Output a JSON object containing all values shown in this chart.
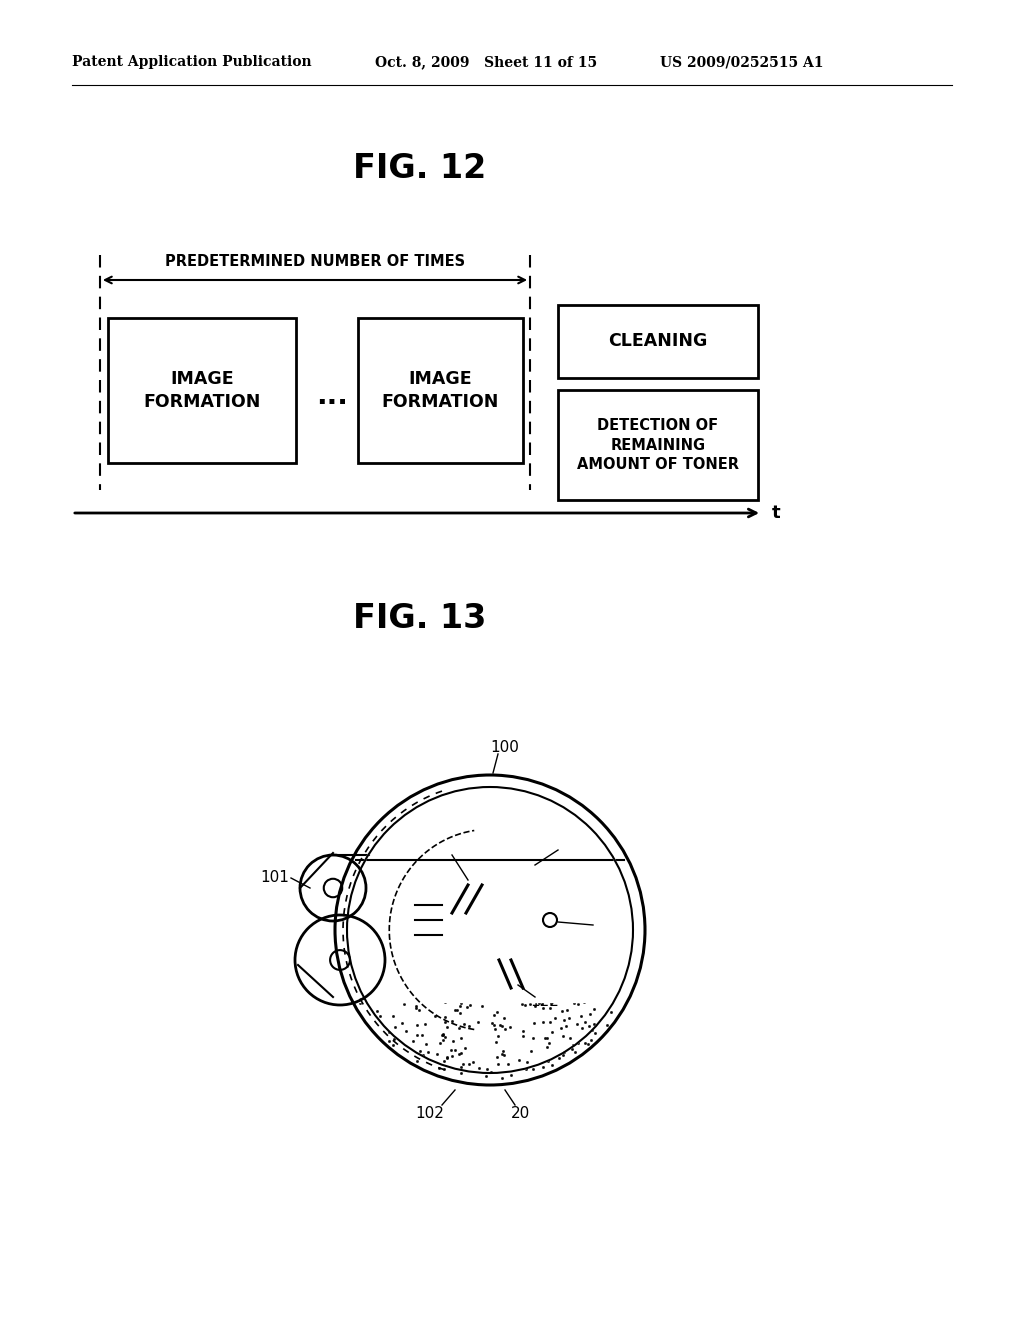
{
  "background_color": "#ffffff",
  "header_left": "Patent Application Publication",
  "header_mid": "Oct. 8, 2009   Sheet 11 of 15",
  "header_right": "US 2009/0252515 A1",
  "fig12_title": "FIG. 12",
  "fig13_title": "FIG. 13",
  "box1_text": "IMAGE\nFORMATION",
  "box2_text": "IMAGE\nFORMATION",
  "box3_text": "CLEANING",
  "box4_text": "DETECTION OF\nREMAINING\nAMOUNT OF TONER",
  "arrow_label": "PREDETERMINED NUMBER OF TIMES",
  "timeline_label": "t"
}
